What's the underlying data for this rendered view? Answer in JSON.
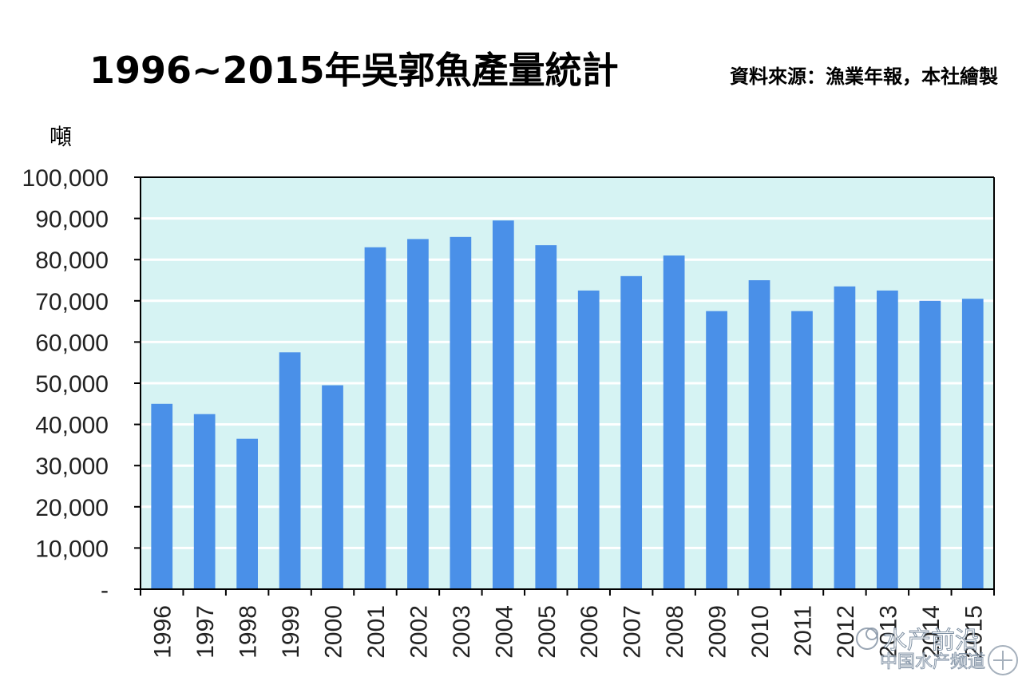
{
  "colors": {
    "plot_background": "#d6f3f3",
    "bar": "#4a90e8",
    "gridline": "#ffffff",
    "axis": "#000000"
  },
  "watermark": {
    "line1": "水产前沿",
    "line2": "中国水产频道"
  },
  "chart_data": {
    "type": "bar",
    "title": "1996~2015年吳郭魚產量統計",
    "subtitle": "資料來源：漁業年報，本社繪製",
    "xlabel": "",
    "ylabel": "噸",
    "ylim": [
      0,
      100000
    ],
    "yticks": [
      0,
      10000,
      20000,
      30000,
      40000,
      50000,
      60000,
      70000,
      80000,
      90000,
      100000
    ],
    "ytick_labels": [
      "-",
      "10,000",
      "20,000",
      "30,000",
      "40,000",
      "50,000",
      "60,000",
      "70,000",
      "80,000",
      "90,000",
      "100,000"
    ],
    "grid": true,
    "categories": [
      "1996",
      "1997",
      "1998",
      "1999",
      "2000",
      "2001",
      "2002",
      "2003",
      "2004",
      "2005",
      "2006",
      "2007",
      "2008",
      "2009",
      "2010",
      "2011",
      "2012",
      "2013",
      "2014",
      "2015"
    ],
    "values": [
      45000,
      42500,
      36500,
      57500,
      49500,
      83000,
      85000,
      85500,
      89500,
      83500,
      72500,
      76000,
      81000,
      67500,
      75000,
      67500,
      73500,
      72500,
      70000,
      70500
    ]
  }
}
